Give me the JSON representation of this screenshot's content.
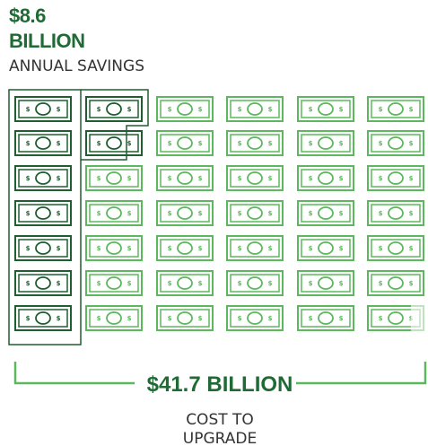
{
  "savings": {
    "amount": "$8.6",
    "unit": "BILLION",
    "label": "ANNUAL SAVINGS"
  },
  "cost": {
    "amount": "$41.7 BILLION",
    "label_line1": "COST TO",
    "label_line2": "UPGRADE"
  },
  "bill_symbol": "$"
}
